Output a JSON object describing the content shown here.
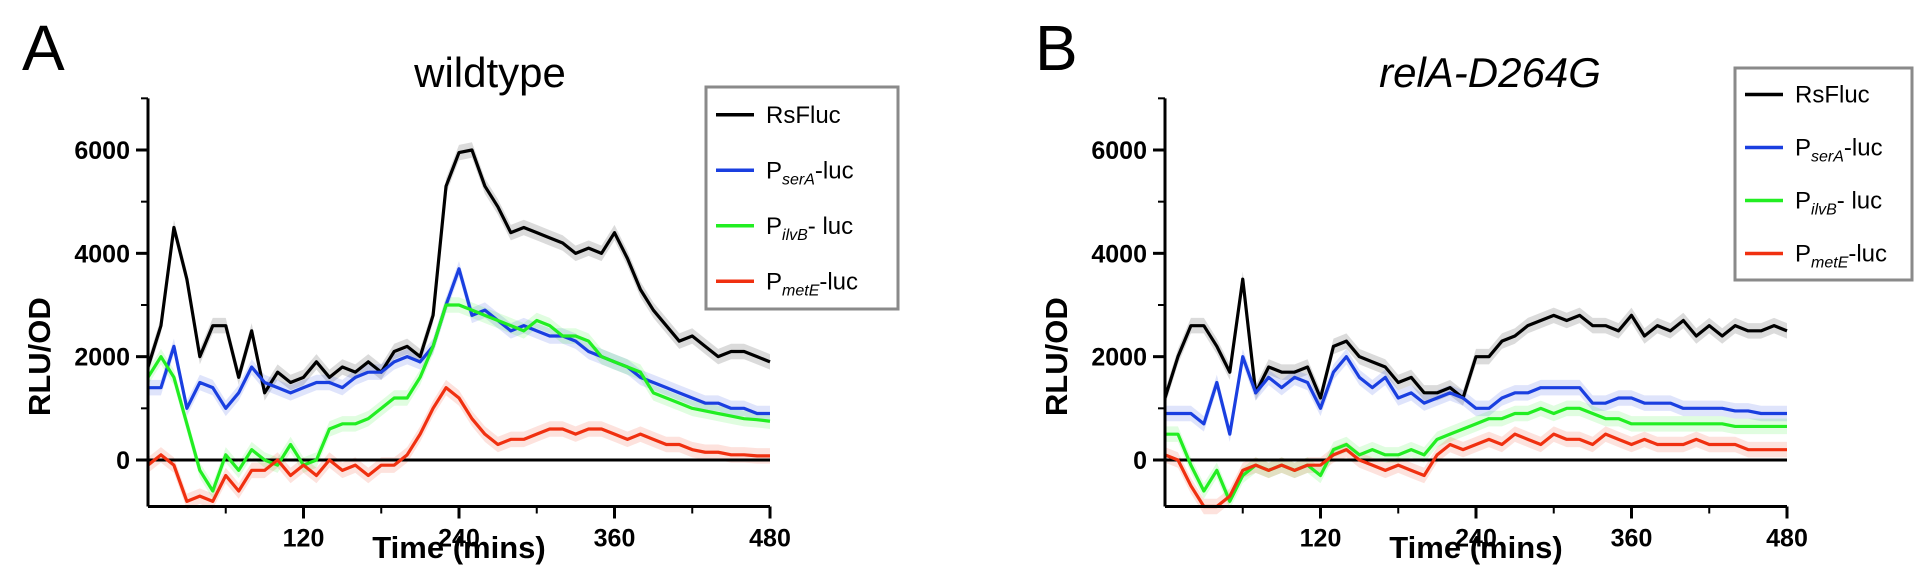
{
  "chart_data": [
    {
      "type": "line",
      "panel_label": "A",
      "title": "wildtype",
      "title_italic": false,
      "xlabel": "Time (mins)",
      "ylabel": "RLU/OD",
      "xlim": [
        0,
        480
      ],
      "ylim": [
        -900,
        7000
      ],
      "xticks": [
        120,
        240,
        360,
        480
      ],
      "yticks": [
        0,
        2000,
        4000,
        6000
      ],
      "legend_position": "top-right",
      "series": [
        {
          "name": "RsFluc",
          "prefix": "RsFluc",
          "sub": "",
          "suffix": "",
          "color": "#000000",
          "x": [
            0,
            10,
            20,
            30,
            40,
            50,
            60,
            70,
            80,
            90,
            100,
            110,
            120,
            130,
            140,
            150,
            160,
            170,
            180,
            190,
            200,
            210,
            220,
            230,
            240,
            250,
            260,
            270,
            280,
            290,
            300,
            310,
            320,
            330,
            340,
            350,
            360,
            370,
            380,
            390,
            400,
            410,
            420,
            430,
            440,
            450,
            460,
            470,
            480
          ],
          "y": [
            1800,
            2600,
            4500,
            3500,
            2000,
            2600,
            2600,
            1600,
            2500,
            1300,
            1700,
            1500,
            1600,
            1900,
            1600,
            1800,
            1700,
            1900,
            1700,
            2100,
            2200,
            2000,
            2800,
            5300,
            5950,
            6000,
            5300,
            4900,
            4400,
            4500,
            4400,
            4300,
            4200,
            4000,
            4100,
            4000,
            4400,
            3900,
            3300,
            2900,
            2600,
            2300,
            2400,
            2200,
            2000,
            2100,
            2100,
            2000,
            1900
          ]
        },
        {
          "name": "PserA-luc",
          "prefix": "P",
          "sub": "serA",
          "suffix": "-luc",
          "color": "#1a3fe0",
          "x": [
            0,
            10,
            20,
            30,
            40,
            50,
            60,
            70,
            80,
            90,
            100,
            110,
            120,
            130,
            140,
            150,
            160,
            170,
            180,
            190,
            200,
            210,
            220,
            230,
            240,
            250,
            260,
            270,
            280,
            290,
            300,
            310,
            320,
            330,
            340,
            350,
            360,
            370,
            380,
            390,
            400,
            410,
            420,
            430,
            440,
            450,
            460,
            470,
            480
          ],
          "y": [
            1400,
            1400,
            2200,
            1000,
            1500,
            1400,
            1000,
            1300,
            1800,
            1500,
            1400,
            1300,
            1400,
            1500,
            1500,
            1400,
            1600,
            1700,
            1700,
            1900,
            2000,
            1900,
            2200,
            3000,
            3700,
            2800,
            2900,
            2700,
            2500,
            2600,
            2500,
            2400,
            2400,
            2300,
            2100,
            2000,
            1900,
            1800,
            1600,
            1500,
            1400,
            1300,
            1200,
            1100,
            1100,
            1000,
            1000,
            900,
            900
          ]
        },
        {
          "name": "PilvB- luc",
          "prefix": "P",
          "sub": "ilvB",
          "suffix": "- luc",
          "color": "#22ee22",
          "x": [
            0,
            10,
            20,
            30,
            40,
            50,
            60,
            70,
            80,
            90,
            100,
            110,
            120,
            130,
            140,
            150,
            160,
            170,
            180,
            190,
            200,
            210,
            220,
            230,
            240,
            250,
            260,
            270,
            280,
            290,
            300,
            310,
            320,
            330,
            340,
            350,
            360,
            370,
            380,
            390,
            400,
            410,
            420,
            430,
            440,
            450,
            460,
            470,
            480
          ],
          "y": [
            1600,
            2000,
            1600,
            700,
            -200,
            -600,
            100,
            -200,
            200,
            0,
            -100,
            300,
            -100,
            0,
            600,
            700,
            700,
            800,
            1000,
            1200,
            1200,
            1600,
            2200,
            3000,
            3000,
            2900,
            2800,
            2700,
            2600,
            2500,
            2700,
            2600,
            2400,
            2400,
            2300,
            2000,
            1900,
            1800,
            1700,
            1300,
            1200,
            1100,
            1000,
            950,
            900,
            850,
            800,
            780,
            750
          ]
        },
        {
          "name": "PmetE-luc",
          "prefix": "P",
          "sub": "metE",
          "suffix": "-luc",
          "color": "#f03010",
          "x": [
            0,
            10,
            20,
            30,
            40,
            50,
            60,
            70,
            80,
            90,
            100,
            110,
            120,
            130,
            140,
            150,
            160,
            170,
            180,
            190,
            200,
            210,
            220,
            230,
            240,
            250,
            260,
            270,
            280,
            290,
            300,
            310,
            320,
            330,
            340,
            350,
            360,
            370,
            380,
            390,
            400,
            410,
            420,
            430,
            440,
            450,
            460,
            470,
            480
          ],
          "y": [
            -100,
            100,
            -100,
            -800,
            -700,
            -800,
            -300,
            -600,
            -200,
            -200,
            0,
            -300,
            -100,
            -300,
            0,
            -200,
            -100,
            -300,
            -100,
            -100,
            100,
            500,
            1000,
            1400,
            1200,
            800,
            500,
            300,
            400,
            400,
            500,
            600,
            600,
            500,
            600,
            600,
            500,
            400,
            500,
            400,
            300,
            300,
            200,
            150,
            150,
            100,
            100,
            80,
            80
          ]
        }
      ]
    },
    {
      "type": "line",
      "panel_label": "B",
      "title": "relA-D264G",
      "title_italic": true,
      "xlabel": "Time (mins)",
      "ylabel": "RLU/OD",
      "xlim": [
        0,
        480
      ],
      "ylim": [
        -900,
        7000
      ],
      "xticks": [
        120,
        240,
        360,
        480
      ],
      "yticks": [
        0,
        2000,
        4000,
        6000
      ],
      "legend_position": "top-right",
      "series": [
        {
          "name": "RsFluc",
          "prefix": "RsFluc",
          "sub": "",
          "suffix": "",
          "color": "#000000",
          "x": [
            0,
            10,
            20,
            30,
            40,
            50,
            60,
            70,
            80,
            90,
            100,
            110,
            120,
            130,
            140,
            150,
            160,
            170,
            180,
            190,
            200,
            210,
            220,
            230,
            240,
            250,
            260,
            270,
            280,
            290,
            300,
            310,
            320,
            330,
            340,
            350,
            360,
            370,
            380,
            390,
            400,
            410,
            420,
            430,
            440,
            450,
            460,
            470,
            480
          ],
          "y": [
            1200,
            2000,
            2600,
            2600,
            2200,
            1700,
            3500,
            1300,
            1800,
            1700,
            1700,
            1800,
            1200,
            2200,
            2300,
            2000,
            1900,
            1800,
            1500,
            1600,
            1300,
            1300,
            1400,
            1200,
            2000,
            2000,
            2300,
            2400,
            2600,
            2700,
            2800,
            2700,
            2800,
            2600,
            2600,
            2500,
            2800,
            2400,
            2600,
            2500,
            2700,
            2400,
            2600,
            2400,
            2600,
            2500,
            2500,
            2600,
            2500
          ]
        },
        {
          "name": "PserA-luc",
          "prefix": "P",
          "sub": "serA",
          "suffix": "-luc",
          "color": "#1a3fe0",
          "x": [
            0,
            10,
            20,
            30,
            40,
            50,
            60,
            70,
            80,
            90,
            100,
            110,
            120,
            130,
            140,
            150,
            160,
            170,
            180,
            190,
            200,
            210,
            220,
            230,
            240,
            250,
            260,
            270,
            280,
            290,
            300,
            310,
            320,
            330,
            340,
            350,
            360,
            370,
            380,
            390,
            400,
            410,
            420,
            430,
            440,
            450,
            460,
            470,
            480
          ],
          "y": [
            900,
            900,
            900,
            700,
            1500,
            500,
            2000,
            1300,
            1600,
            1400,
            1600,
            1500,
            1000,
            1700,
            2000,
            1600,
            1400,
            1600,
            1200,
            1300,
            1100,
            1200,
            1300,
            1200,
            1000,
            1000,
            1200,
            1300,
            1300,
            1400,
            1400,
            1400,
            1400,
            1100,
            1100,
            1200,
            1200,
            1100,
            1100,
            1100,
            1000,
            1000,
            1000,
            1000,
            950,
            950,
            900,
            900,
            900
          ]
        },
        {
          "name": "PilvB- luc",
          "prefix": "P",
          "sub": "ilvB",
          "suffix": "- luc",
          "color": "#22ee22",
          "x": [
            0,
            10,
            20,
            30,
            40,
            50,
            60,
            70,
            80,
            90,
            100,
            110,
            120,
            130,
            140,
            150,
            160,
            170,
            180,
            190,
            200,
            210,
            220,
            230,
            240,
            250,
            260,
            270,
            280,
            290,
            300,
            310,
            320,
            330,
            340,
            350,
            360,
            370,
            380,
            390,
            400,
            410,
            420,
            430,
            440,
            450,
            460,
            470,
            480
          ],
          "y": [
            500,
            500,
            -100,
            -600,
            -200,
            -800,
            -300,
            -100,
            -200,
            -100,
            -200,
            -100,
            -300,
            200,
            300,
            100,
            200,
            100,
            100,
            200,
            100,
            400,
            500,
            600,
            700,
            800,
            800,
            900,
            900,
            1000,
            900,
            1000,
            1000,
            900,
            800,
            800,
            700,
            700,
            700,
            700,
            700,
            700,
            700,
            700,
            650,
            650,
            650,
            650,
            650
          ]
        },
        {
          "name": "PmetE-luc",
          "prefix": "P",
          "sub": "metE",
          "suffix": "-luc",
          "color": "#f03010",
          "x": [
            0,
            10,
            20,
            30,
            40,
            50,
            60,
            70,
            80,
            90,
            100,
            110,
            120,
            130,
            140,
            150,
            160,
            170,
            180,
            190,
            200,
            210,
            220,
            230,
            240,
            250,
            260,
            270,
            280,
            290,
            300,
            310,
            320,
            330,
            340,
            350,
            360,
            370,
            380,
            390,
            400,
            410,
            420,
            430,
            440,
            450,
            460,
            470,
            480
          ],
          "y": [
            100,
            0,
            -500,
            -900,
            -900,
            -700,
            -200,
            -100,
            -200,
            -100,
            -200,
            -100,
            -100,
            100,
            200,
            0,
            -100,
            -200,
            -100,
            -200,
            -300,
            100,
            300,
            200,
            300,
            400,
            300,
            500,
            400,
            300,
            500,
            400,
            400,
            300,
            500,
            400,
            300,
            400,
            300,
            300,
            300,
            400,
            300,
            300,
            300,
            200,
            200,
            200,
            200
          ]
        }
      ]
    }
  ]
}
